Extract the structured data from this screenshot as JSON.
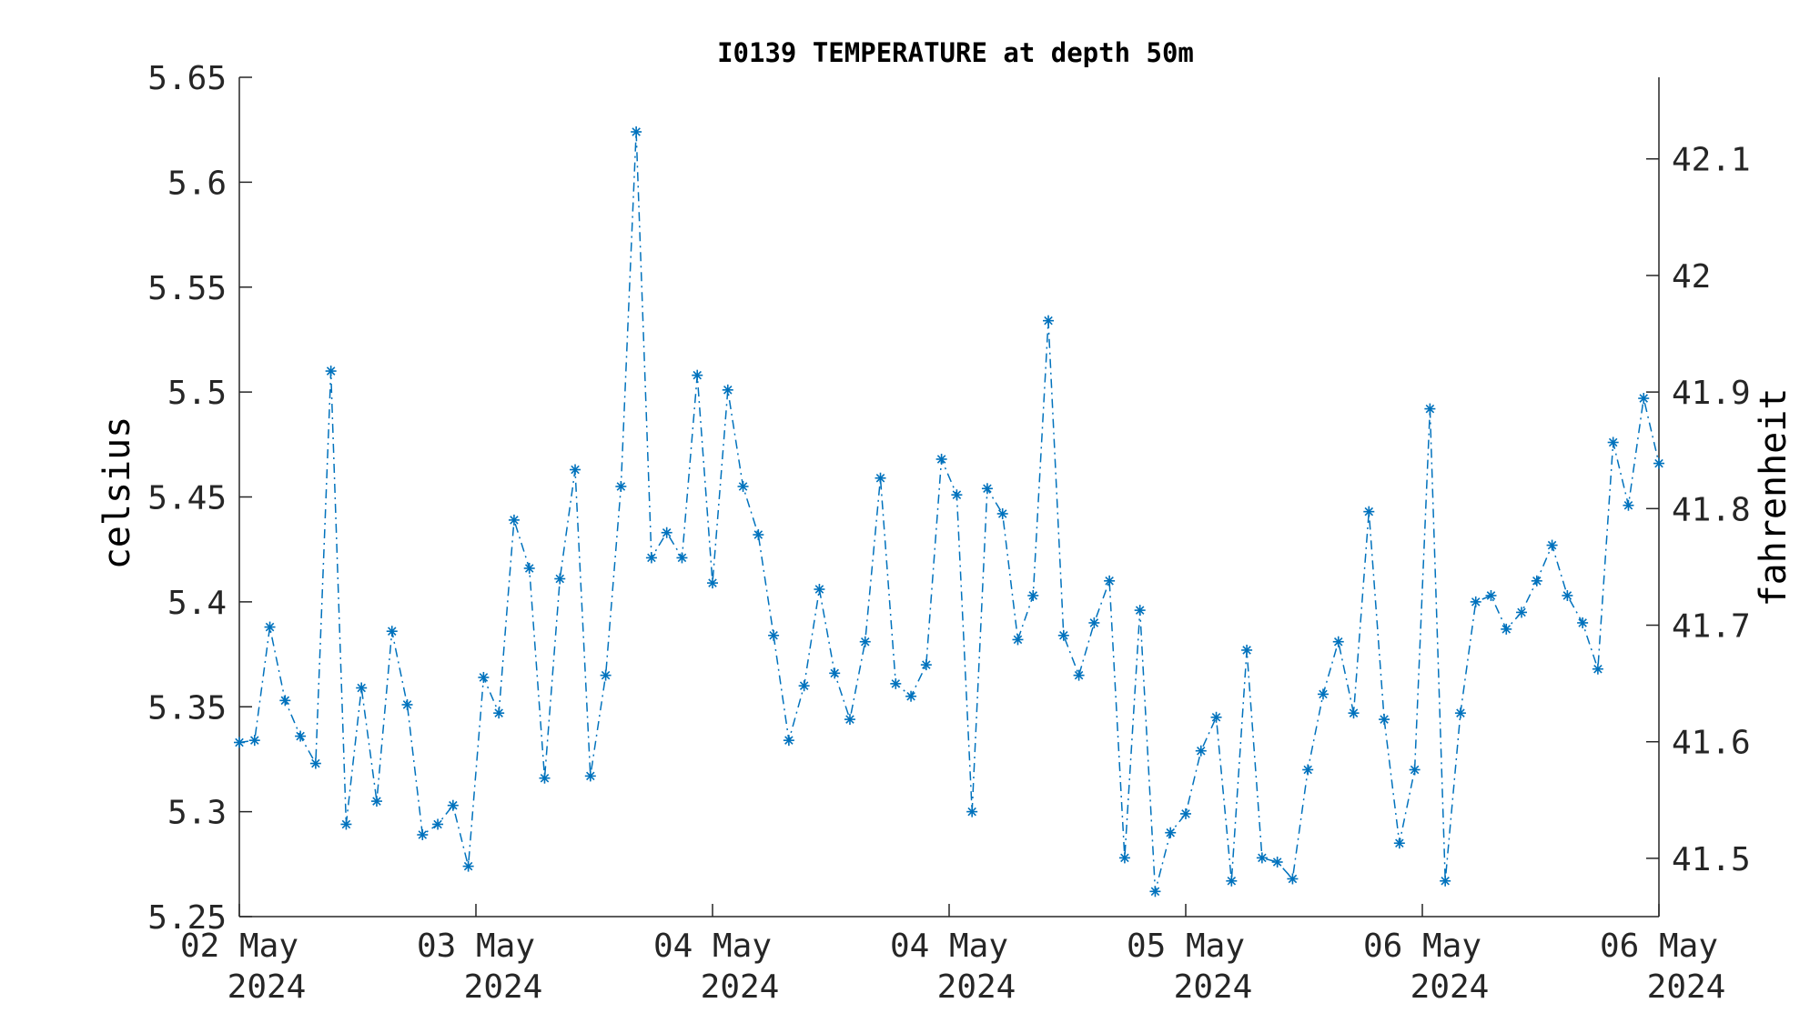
{
  "chart_data": {
    "type": "line",
    "title": "I0139 TEMPERATURE at depth 50m",
    "ylabel": "celsius",
    "ylabel_right": "fahrenheit",
    "ylim": [
      5.25,
      5.65
    ],
    "yticks": [
      5.25,
      5.3,
      5.35,
      5.4,
      5.45,
      5.5,
      5.55,
      5.6,
      5.65
    ],
    "yticks_right": [
      41.5,
      41.6,
      41.7,
      41.8,
      41.9,
      42.0,
      42.1
    ],
    "yticks_right_labels": [
      "41.5",
      "41.6",
      "41.7",
      "41.8",
      "41.9",
      "42",
      "42.1"
    ],
    "xticks": [
      {
        "day": "02 May",
        "year": "2024"
      },
      {
        "day": "03 May",
        "year": "2024"
      },
      {
        "day": "04 May",
        "year": "2024"
      },
      {
        "day": "04 May",
        "year": "2024"
      },
      {
        "day": "05 May",
        "year": "2024"
      },
      {
        "day": "06 May",
        "year": "2024"
      },
      {
        "day": "06 May",
        "year": "2024"
      }
    ],
    "grid": false,
    "series_color": "#0072BD",
    "marker": "asterisk",
    "line_style": "dash-dot",
    "values": [
      5.333,
      5.334,
      5.388,
      5.353,
      5.336,
      5.323,
      5.51,
      5.294,
      5.359,
      5.305,
      5.386,
      5.351,
      5.289,
      5.294,
      5.303,
      5.274,
      5.364,
      5.347,
      5.439,
      5.416,
      5.316,
      5.411,
      5.463,
      5.317,
      5.365,
      5.455,
      5.624,
      5.421,
      5.433,
      5.421,
      5.508,
      5.409,
      5.501,
      5.455,
      5.432,
      5.384,
      5.334,
      5.36,
      5.406,
      5.366,
      5.344,
      5.381,
      5.459,
      5.361,
      5.355,
      5.37,
      5.468,
      5.451,
      5.3,
      5.454,
      5.442,
      5.382,
      5.403,
      5.534,
      5.384,
      5.365,
      5.39,
      5.41,
      5.278,
      5.396,
      5.262,
      5.29,
      5.299,
      5.329,
      5.345,
      5.267,
      5.377,
      5.278,
      5.276,
      5.268,
      5.32,
      5.356,
      5.381,
      5.347,
      5.443,
      5.344,
      5.285,
      5.32,
      5.492,
      5.267,
      5.347,
      5.4,
      5.403,
      5.387,
      5.395,
      5.41,
      5.427,
      5.403,
      5.39,
      5.368,
      5.476,
      5.446,
      5.497,
      5.466
    ]
  }
}
